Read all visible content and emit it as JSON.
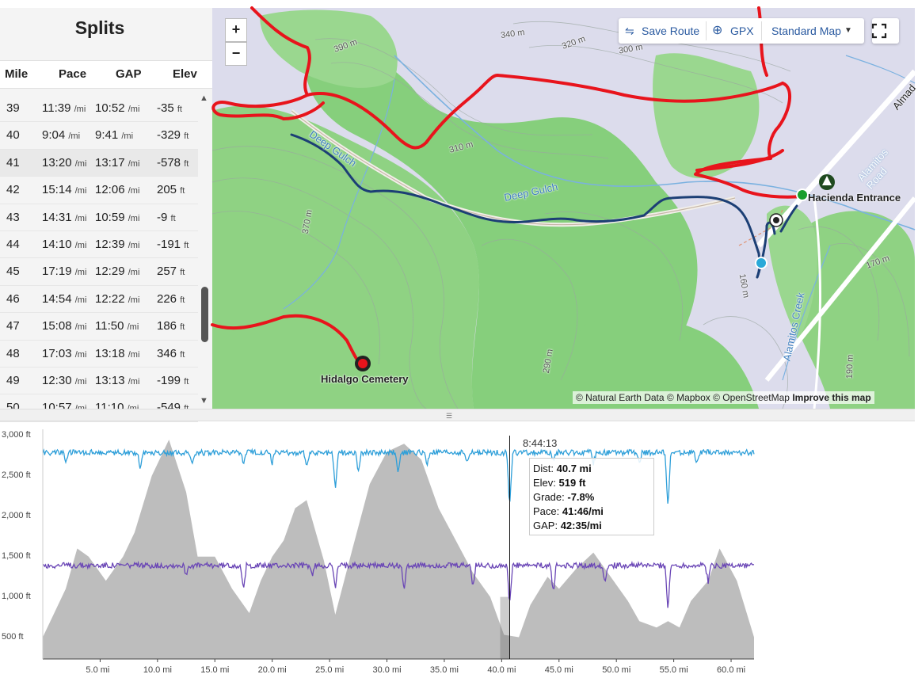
{
  "splits": {
    "title": "Splits",
    "headers": {
      "mile": "Mile",
      "pace": "Pace",
      "gap": "GAP",
      "elev": "Elev"
    },
    "units": {
      "pace": "/mi",
      "elev": "ft"
    },
    "rows": [
      {
        "mile": "39",
        "pace": "11:39",
        "gap": "10:52",
        "elev": "-35"
      },
      {
        "mile": "40",
        "pace": "9:04",
        "gap": "9:41",
        "elev": "-329"
      },
      {
        "mile": "41",
        "pace": "13:20",
        "gap": "13:17",
        "elev": "-578"
      },
      {
        "mile": "42",
        "pace": "15:14",
        "gap": "12:06",
        "elev": "205"
      },
      {
        "mile": "43",
        "pace": "14:31",
        "gap": "10:59",
        "elev": "-9"
      },
      {
        "mile": "44",
        "pace": "14:10",
        "gap": "12:39",
        "elev": "-191"
      },
      {
        "mile": "45",
        "pace": "17:19",
        "gap": "12:29",
        "elev": "257"
      },
      {
        "mile": "46",
        "pace": "14:54",
        "gap": "12:22",
        "elev": "226"
      },
      {
        "mile": "47",
        "pace": "15:08",
        "gap": "11:50",
        "elev": "186"
      },
      {
        "mile": "48",
        "pace": "17:03",
        "gap": "13:18",
        "elev": "346"
      },
      {
        "mile": "49",
        "pace": "12:30",
        "gap": "13:13",
        "elev": "-199"
      },
      {
        "mile": "50",
        "pace": "10:57",
        "gap": "11:10",
        "elev": "-549"
      }
    ]
  },
  "map": {
    "zoom_in": "+",
    "zoom_out": "−",
    "toolbar": {
      "save_route": "Save Route",
      "gpx": "GPX",
      "map_style": "Standard Map"
    },
    "attribution": {
      "text": "© Natural Earth Data © Mapbox © OpenStreetMap",
      "link": "Improve this map"
    },
    "labels": {
      "cemetery": "Hidalgo Cemetery",
      "entrance": "Hacienda Entrance",
      "deep_gulch_1": "Deep Gulch",
      "deep_gulch_2": "Deep Gulch",
      "alamitos_creek": "Alamitos Creek",
      "alamitos_road": "Alamitos Road",
      "almaden": "Almad",
      "c340": "340 m",
      "c320": "320 m",
      "c300": "300 m",
      "c390": "390 m",
      "c310": "310 m",
      "c370": "370 m",
      "c290": "290 m",
      "c160": "160 m",
      "c170": "170 m",
      "c190": "190 m"
    },
    "colors": {
      "route": "#e8141c",
      "track": "#1c3f75",
      "green": "#86cf7c",
      "terrain": "#d9d9ec",
      "water": "#7ab1e0"
    }
  },
  "chart_data": {
    "type": "area",
    "yticks": [
      "3,000 ft",
      "2,500 ft",
      "2,000 ft",
      "1,500 ft",
      "1,000 ft",
      "500 ft"
    ],
    "xticks": [
      "5.0 mi",
      "10.0 mi",
      "15.0 mi",
      "20.0 mi",
      "25.0 mi",
      "30.0 mi",
      "35.0 mi",
      "40.0 mi",
      "45.0 mi",
      "50.0 mi",
      "55.0 mi",
      "60.0 mi"
    ],
    "xlim": [
      0,
      62
    ],
    "ylim": [
      230,
      3000
    ],
    "elevation": {
      "x": [
        0,
        2,
        3,
        4,
        5.5,
        7,
        8,
        9.5,
        11,
        12.5,
        13.5,
        15,
        16.5,
        18,
        19,
        20,
        21,
        22,
        23,
        24.5,
        25.5,
        27,
        28.5,
        30,
        31.5,
        33,
        34.5,
        36,
        37.5,
        39,
        40.2,
        40.7,
        41.5,
        42.5,
        44,
        45,
        46.5,
        48,
        49.5,
        51,
        52,
        53.5,
        54.5,
        55.5,
        56.5,
        58,
        59,
        60.5,
        62
      ],
      "y": [
        500,
        1100,
        1600,
        1500,
        1200,
        1500,
        1800,
        2500,
        2950,
        2300,
        1500,
        1500,
        1100,
        800,
        1200,
        1500,
        1700,
        2100,
        2200,
        1450,
        780,
        1600,
        2400,
        2800,
        2900,
        2700,
        2100,
        1700,
        1300,
        1000,
        530,
        519,
        500,
        900,
        1250,
        1100,
        1350,
        1550,
        1250,
        950,
        700,
        620,
        700,
        620,
        950,
        1200,
        1600,
        1200,
        500
      ]
    },
    "gap_series": {
      "name": "",
      "color": "#2e9fd9",
      "base": 2790,
      "spike_x": [
        2,
        8.5,
        13,
        17.5,
        20,
        23,
        25.5,
        27.5,
        31,
        33.5,
        37,
        40.7,
        44.5,
        48,
        52,
        54.5,
        57
      ],
      "spike_depth": [
        120,
        180,
        160,
        150,
        130,
        210,
        480,
        230,
        260,
        160,
        140,
        690,
        110,
        130,
        150,
        700,
        160
      ]
    },
    "pace_series": {
      "name": "",
      "color": "#6a46b6",
      "base": 1390,
      "spike_x": [
        12.5,
        17.5,
        23.5,
        25.5,
        31.5,
        37.5,
        40.7,
        44.5,
        49,
        54.5,
        58
      ],
      "spike_depth": [
        110,
        330,
        130,
        310,
        320,
        260,
        500,
        340,
        200,
        560,
        200
      ]
    },
    "cursor": {
      "x": 40.7,
      "time": "8:44:13",
      "dist_label": "Dist:",
      "dist": "40.7 mi",
      "elev_label": "Elev:",
      "elev": "519 ft",
      "grade_label": "Grade:",
      "grade": "-7.8%",
      "pace_label": "Pace:",
      "pace": "41:46/mi",
      "gap_label": "GAP:",
      "gap": "42:35/mi"
    }
  }
}
